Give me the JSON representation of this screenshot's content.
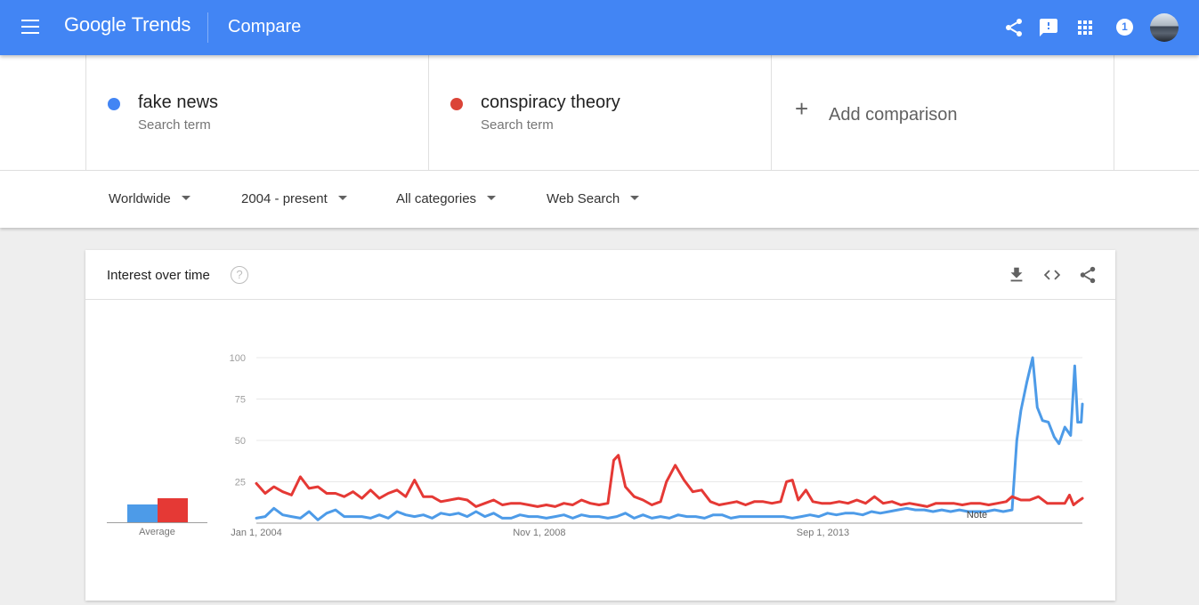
{
  "header": {
    "logo_google": "Google",
    "logo_trends": "Trends",
    "page_title": "Compare",
    "notification_count": "1",
    "icons": [
      "menu-icon",
      "share-icon",
      "feedback-icon",
      "apps-icon",
      "notification-icon",
      "avatar"
    ]
  },
  "terms": [
    {
      "name": "fake news",
      "subtitle": "Search term",
      "color": "#4285f4"
    },
    {
      "name": "conspiracy theory",
      "subtitle": "Search term",
      "color": "#db4437"
    }
  ],
  "add_comparison": {
    "label": "Add comparison",
    "icon": "plus-icon"
  },
  "filters": {
    "region": "Worldwide",
    "time": "2004 - present",
    "category": "All categories",
    "property": "Web Search"
  },
  "card": {
    "title": "Interest over time",
    "help": "?",
    "icons": [
      "download-icon",
      "embed-icon",
      "share-icon"
    ],
    "average_label": "Average",
    "note_label": "Note"
  },
  "chart_data": {
    "type": "line",
    "title": "Interest over time",
    "yticks": [
      25,
      50,
      75,
      100
    ],
    "ylim": [
      0,
      100
    ],
    "xlim": [
      2004.0,
      2018.1
    ],
    "xtick_labels": [
      {
        "label": "Jan 1, 2004",
        "x": 2004.0
      },
      {
        "label": "Nov 1, 2008",
        "x": 2008.83
      },
      {
        "label": "Sep 1, 2013",
        "x": 2013.67
      }
    ],
    "note_x": 2016.3,
    "grid": true,
    "series": [
      {
        "name": "fake news",
        "color": "#4d9be8",
        "average": 11,
        "points": [
          [
            2004.0,
            3
          ],
          [
            2004.15,
            4
          ],
          [
            2004.3,
            9
          ],
          [
            2004.45,
            5
          ],
          [
            2004.6,
            4
          ],
          [
            2004.75,
            3
          ],
          [
            2004.9,
            7
          ],
          [
            2005.05,
            2
          ],
          [
            2005.2,
            6
          ],
          [
            2005.35,
            8
          ],
          [
            2005.5,
            4
          ],
          [
            2005.65,
            4
          ],
          [
            2005.8,
            4
          ],
          [
            2005.95,
            3
          ],
          [
            2006.1,
            5
          ],
          [
            2006.25,
            3
          ],
          [
            2006.4,
            7
          ],
          [
            2006.55,
            5
          ],
          [
            2006.7,
            4
          ],
          [
            2006.85,
            5
          ],
          [
            2007.0,
            3
          ],
          [
            2007.15,
            6
          ],
          [
            2007.3,
            5
          ],
          [
            2007.45,
            6
          ],
          [
            2007.6,
            4
          ],
          [
            2007.75,
            7
          ],
          [
            2007.9,
            4
          ],
          [
            2008.05,
            6
          ],
          [
            2008.2,
            3
          ],
          [
            2008.35,
            3
          ],
          [
            2008.5,
            5
          ],
          [
            2008.65,
            4
          ],
          [
            2008.8,
            4
          ],
          [
            2008.95,
            3
          ],
          [
            2009.1,
            4
          ],
          [
            2009.25,
            5
          ],
          [
            2009.4,
            3
          ],
          [
            2009.55,
            5
          ],
          [
            2009.7,
            4
          ],
          [
            2009.85,
            4
          ],
          [
            2010.0,
            3
          ],
          [
            2010.15,
            4
          ],
          [
            2010.3,
            6
          ],
          [
            2010.45,
            3
          ],
          [
            2010.6,
            5
          ],
          [
            2010.75,
            3
          ],
          [
            2010.9,
            4
          ],
          [
            2011.05,
            3
          ],
          [
            2011.2,
            5
          ],
          [
            2011.35,
            4
          ],
          [
            2011.5,
            4
          ],
          [
            2011.65,
            3
          ],
          [
            2011.8,
            5
          ],
          [
            2011.95,
            5
          ],
          [
            2012.1,
            3
          ],
          [
            2012.25,
            4
          ],
          [
            2012.4,
            4
          ],
          [
            2012.55,
            4
          ],
          [
            2012.7,
            4
          ],
          [
            2012.85,
            4
          ],
          [
            2013.0,
            4
          ],
          [
            2013.15,
            3
          ],
          [
            2013.3,
            4
          ],
          [
            2013.45,
            5
          ],
          [
            2013.6,
            4
          ],
          [
            2013.75,
            6
          ],
          [
            2013.9,
            5
          ],
          [
            2014.05,
            6
          ],
          [
            2014.2,
            6
          ],
          [
            2014.35,
            5
          ],
          [
            2014.5,
            7
          ],
          [
            2014.65,
            6
          ],
          [
            2014.8,
            7
          ],
          [
            2014.95,
            8
          ],
          [
            2015.1,
            9
          ],
          [
            2015.25,
            8
          ],
          [
            2015.4,
            8
          ],
          [
            2015.55,
            7
          ],
          [
            2015.7,
            8
          ],
          [
            2015.85,
            7
          ],
          [
            2016.0,
            8
          ],
          [
            2016.15,
            7
          ],
          [
            2016.3,
            7
          ],
          [
            2016.45,
            7
          ],
          [
            2016.6,
            8
          ],
          [
            2016.75,
            7
          ],
          [
            2016.9,
            8
          ],
          [
            2016.98,
            50
          ],
          [
            2017.05,
            68
          ],
          [
            2017.15,
            85
          ],
          [
            2017.25,
            100
          ],
          [
            2017.33,
            70
          ],
          [
            2017.42,
            62
          ],
          [
            2017.52,
            61
          ],
          [
            2017.62,
            52
          ],
          [
            2017.7,
            48
          ],
          [
            2017.8,
            58
          ],
          [
            2017.9,
            53
          ],
          [
            2017.97,
            95
          ],
          [
            2018.02,
            61
          ],
          [
            2018.08,
            61
          ],
          [
            2018.1,
            72
          ]
        ]
      },
      {
        "name": "conspiracy theory",
        "color": "#e53935",
        "average": 15,
        "points": [
          [
            2004.0,
            24
          ],
          [
            2004.15,
            18
          ],
          [
            2004.3,
            22
          ],
          [
            2004.45,
            19
          ],
          [
            2004.6,
            17
          ],
          [
            2004.75,
            28
          ],
          [
            2004.9,
            21
          ],
          [
            2005.05,
            22
          ],
          [
            2005.2,
            18
          ],
          [
            2005.35,
            18
          ],
          [
            2005.5,
            16
          ],
          [
            2005.65,
            19
          ],
          [
            2005.8,
            15
          ],
          [
            2005.95,
            20
          ],
          [
            2006.1,
            15
          ],
          [
            2006.25,
            18
          ],
          [
            2006.4,
            20
          ],
          [
            2006.55,
            16
          ],
          [
            2006.7,
            26
          ],
          [
            2006.85,
            16
          ],
          [
            2007.0,
            16
          ],
          [
            2007.15,
            13
          ],
          [
            2007.3,
            14
          ],
          [
            2007.45,
            15
          ],
          [
            2007.6,
            14
          ],
          [
            2007.75,
            10
          ],
          [
            2007.9,
            12
          ],
          [
            2008.05,
            14
          ],
          [
            2008.2,
            11
          ],
          [
            2008.35,
            12
          ],
          [
            2008.5,
            12
          ],
          [
            2008.65,
            11
          ],
          [
            2008.8,
            10
          ],
          [
            2008.95,
            11
          ],
          [
            2009.1,
            10
          ],
          [
            2009.25,
            12
          ],
          [
            2009.4,
            11
          ],
          [
            2009.55,
            14
          ],
          [
            2009.7,
            12
          ],
          [
            2009.85,
            11
          ],
          [
            2010.0,
            12
          ],
          [
            2010.1,
            38
          ],
          [
            2010.18,
            41
          ],
          [
            2010.3,
            22
          ],
          [
            2010.45,
            16
          ],
          [
            2010.6,
            14
          ],
          [
            2010.75,
            11
          ],
          [
            2010.9,
            13
          ],
          [
            2011.0,
            25
          ],
          [
            2011.15,
            35
          ],
          [
            2011.3,
            26
          ],
          [
            2011.45,
            19
          ],
          [
            2011.6,
            20
          ],
          [
            2011.75,
            13
          ],
          [
            2011.9,
            11
          ],
          [
            2012.05,
            12
          ],
          [
            2012.2,
            13
          ],
          [
            2012.35,
            11
          ],
          [
            2012.5,
            13
          ],
          [
            2012.65,
            13
          ],
          [
            2012.8,
            12
          ],
          [
            2012.95,
            13
          ],
          [
            2013.05,
            25
          ],
          [
            2013.15,
            26
          ],
          [
            2013.25,
            14
          ],
          [
            2013.38,
            20
          ],
          [
            2013.5,
            13
          ],
          [
            2013.65,
            12
          ],
          [
            2013.8,
            12
          ],
          [
            2013.95,
            13
          ],
          [
            2014.1,
            12
          ],
          [
            2014.25,
            14
          ],
          [
            2014.4,
            12
          ],
          [
            2014.55,
            16
          ],
          [
            2014.7,
            12
          ],
          [
            2014.85,
            13
          ],
          [
            2015.0,
            11
          ],
          [
            2015.15,
            12
          ],
          [
            2015.3,
            11
          ],
          [
            2015.45,
            10
          ],
          [
            2015.6,
            12
          ],
          [
            2015.75,
            12
          ],
          [
            2015.9,
            12
          ],
          [
            2016.05,
            11
          ],
          [
            2016.2,
            12
          ],
          [
            2016.35,
            12
          ],
          [
            2016.5,
            11
          ],
          [
            2016.65,
            12
          ],
          [
            2016.8,
            13
          ],
          [
            2016.9,
            16
          ],
          [
            2017.05,
            14
          ],
          [
            2017.2,
            14
          ],
          [
            2017.35,
            16
          ],
          [
            2017.5,
            12
          ],
          [
            2017.65,
            12
          ],
          [
            2017.8,
            12
          ],
          [
            2017.88,
            17
          ],
          [
            2017.95,
            11
          ],
          [
            2018.02,
            13
          ],
          [
            2018.1,
            15
          ]
        ]
      }
    ]
  }
}
